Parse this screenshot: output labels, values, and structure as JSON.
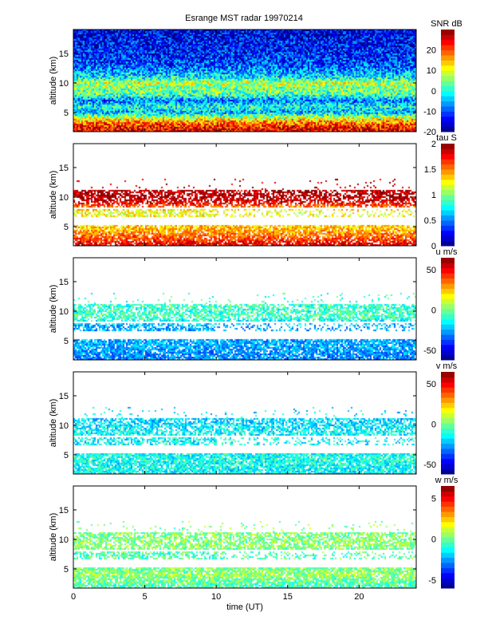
{
  "chart_data": {
    "type": "heatmap",
    "title": "Esrange MST radar 19970214",
    "xlabel": "time (UT)",
    "xlim": [
      0,
      24
    ],
    "xticks": [
      "0",
      "5",
      "10",
      "15",
      "20"
    ],
    "ylabel": "altitude (km)",
    "ylim": [
      1.75,
      19.05
    ],
    "yticks": [
      "5",
      "10",
      "15"
    ],
    "panels": [
      {
        "name": "snr",
        "colorbar_label": "SNR dB",
        "clim": [
          -20,
          30
        ],
        "cticks": [
          "-20",
          "-10",
          "0",
          "10",
          "20"
        ],
        "profile": [
          {
            "alt": 2,
            "value": 25
          },
          {
            "alt": 3,
            "value": 20
          },
          {
            "alt": 4,
            "value": 10
          },
          {
            "alt": 5,
            "value": -5
          },
          {
            "alt": 6,
            "value": 0
          },
          {
            "alt": 7,
            "value": -8
          },
          {
            "alt": 8,
            "value": 3
          },
          {
            "alt": 9,
            "value": 5
          },
          {
            "alt": 10,
            "value": 8
          },
          {
            "alt": 11,
            "value": -2
          },
          {
            "alt": 13,
            "value": -10
          },
          {
            "alt": 16,
            "value": -13
          },
          {
            "alt": 19,
            "value": -15
          }
        ]
      },
      {
        "name": "tau",
        "colorbar_label": "tau S",
        "clim": [
          0,
          2
        ],
        "cticks": [
          "0",
          "0.5",
          "1",
          "1.5",
          "2"
        ],
        "profile": [
          {
            "alt": 2,
            "value": 1.8
          },
          {
            "alt": 3,
            "value": 1.6
          },
          {
            "alt": 4.5,
            "value": 1.4
          },
          {
            "alt": 7.5,
            "value": 1.2
          },
          {
            "alt": 9,
            "value": 1.8
          },
          {
            "alt": 10,
            "value": 1.9
          }
        ]
      },
      {
        "name": "u",
        "colorbar_label": "u m/s",
        "clim": [
          -62,
          65
        ],
        "cticks": [
          "-50",
          "0",
          "50"
        ],
        "profile": [
          {
            "alt": 2,
            "value": -30
          },
          {
            "alt": 4,
            "value": -25
          },
          {
            "alt": 7.5,
            "value": -25
          },
          {
            "alt": 9,
            "value": -5
          },
          {
            "alt": 10,
            "value": -8
          }
        ]
      },
      {
        "name": "v",
        "colorbar_label": "v m/s",
        "clim": [
          -62,
          65
        ],
        "cticks": [
          "-50",
          "0",
          "50"
        ],
        "profile": [
          {
            "alt": 2,
            "value": -15
          },
          {
            "alt": 4,
            "value": -12
          },
          {
            "alt": 7.5,
            "value": -15
          },
          {
            "alt": 9,
            "value": -15
          },
          {
            "alt": 10,
            "value": -18
          }
        ]
      },
      {
        "name": "w",
        "colorbar_label": "w m/s",
        "clim": [
          -6,
          6.5
        ],
        "cticks": [
          "-5",
          "0",
          "5"
        ],
        "profile": [
          {
            "alt": 2,
            "value": -0.5
          },
          {
            "alt": 4,
            "value": 0.5
          },
          {
            "alt": 7.5,
            "value": -0.5
          },
          {
            "alt": 9,
            "value": 0.5
          },
          {
            "alt": 10,
            "value": 0.3
          }
        ]
      }
    ]
  }
}
